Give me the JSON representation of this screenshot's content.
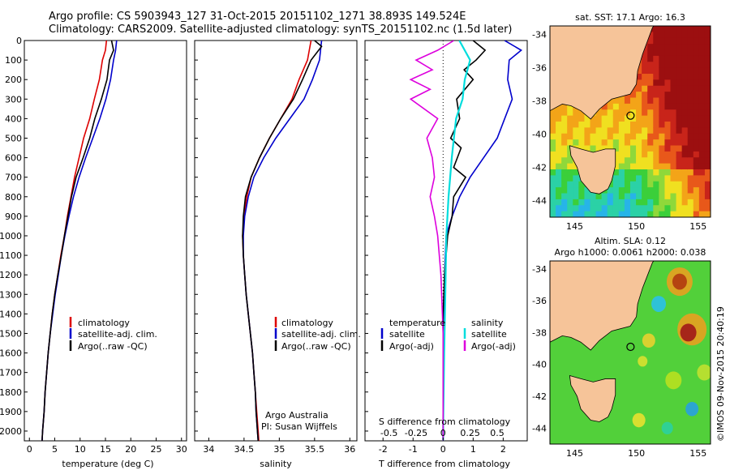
{
  "header": {
    "title_line1": "Argo profile: CS 5903943_127 31-Oct-2015 20151102_1271 38.893S 149.524E",
    "title_line2": "Climatology: CARS2009. Satellite-adjusted climatology: synTS_20151102.nc (1.5d later)"
  },
  "colors": {
    "climatology": "#dd0000",
    "satellite": "#0000cc",
    "argo": "#000000",
    "satellite_s": "#00dddd",
    "argo_s": "#dd00dd"
  },
  "chart_data": [
    {
      "type": "line",
      "name": "temperature-profile",
      "xlabel": "temperature (deg C)",
      "xlim": [
        -1,
        31
      ],
      "ylim": [
        2050,
        0
      ],
      "xticks": [
        "0",
        "5",
        "10",
        "15",
        "20",
        "25",
        "30"
      ],
      "yticks": [
        "0",
        "100",
        "200",
        "300",
        "400",
        "500",
        "600",
        "700",
        "800",
        "900",
        "1000",
        "1100",
        "1200",
        "1300",
        "1400",
        "1500",
        "1600",
        "1700",
        "1800",
        "1900",
        "2000"
      ],
      "legend": [
        "climatology",
        "satellite-adj. clim.",
        "Argo(..raw -QC)"
      ],
      "series": [
        {
          "name": "climatology",
          "color": "#dd0000",
          "points": [
            [
              15.2,
              0
            ],
            [
              15,
              50
            ],
            [
              14.4,
              100
            ],
            [
              13.8,
              200
            ],
            [
              12.8,
              300
            ],
            [
              11.9,
              400
            ],
            [
              10.7,
              500
            ],
            [
              9.8,
              600
            ],
            [
              8.9,
              700
            ],
            [
              8.2,
              800
            ],
            [
              7.5,
              900
            ],
            [
              6.9,
              1000
            ],
            [
              6.2,
              1100
            ],
            [
              5.6,
              1200
            ],
            [
              5,
              1300
            ],
            [
              4.5,
              1400
            ],
            [
              4.1,
              1500
            ],
            [
              3.7,
              1600
            ],
            [
              3.4,
              1700
            ],
            [
              3.1,
              1800
            ],
            [
              2.9,
              1900
            ],
            [
              2.6,
              2000
            ],
            [
              2.5,
              2050
            ]
          ]
        },
        {
          "name": "satellite-adj. clim.",
          "color": "#0000cc",
          "points": [
            [
              17.2,
              0
            ],
            [
              17,
              50
            ],
            [
              16.6,
              100
            ],
            [
              16,
              200
            ],
            [
              15.1,
              300
            ],
            [
              13.9,
              400
            ],
            [
              12.5,
              500
            ],
            [
              11.1,
              600
            ],
            [
              9.8,
              700
            ],
            [
              8.7,
              800
            ],
            [
              7.8,
              900
            ],
            [
              7,
              1000
            ],
            [
              6.3,
              1100
            ],
            [
              5.7,
              1200
            ],
            [
              5.1,
              1300
            ],
            [
              4.6,
              1400
            ],
            [
              4.1,
              1500
            ],
            [
              3.7,
              1600
            ],
            [
              3.4,
              1700
            ],
            [
              3.1,
              1800
            ],
            [
              2.9,
              1900
            ],
            [
              2.6,
              2000
            ],
            [
              2.5,
              2050
            ]
          ]
        },
        {
          "name": "Argo(..raw -QC)",
          "color": "#000000",
          "points": [
            [
              16.2,
              0
            ],
            [
              16.6,
              50
            ],
            [
              15.8,
              100
            ],
            [
              15.3,
              200
            ],
            [
              14.2,
              300
            ],
            [
              12.9,
              400
            ],
            [
              11.9,
              500
            ],
            [
              10.6,
              600
            ],
            [
              9.2,
              700
            ],
            [
              8.3,
              800
            ],
            [
              7.6,
              900
            ],
            [
              6.9,
              1000
            ],
            [
              6.3,
              1100
            ],
            [
              5.6,
              1200
            ],
            [
              5,
              1300
            ],
            [
              4.5,
              1400
            ],
            [
              4.1,
              1500
            ],
            [
              3.7,
              1600
            ],
            [
              3.4,
              1700
            ],
            [
              3.1,
              1800
            ],
            [
              2.9,
              1900
            ],
            [
              2.6,
              2000
            ],
            [
              2.5,
              2050
            ]
          ]
        }
      ]
    },
    {
      "type": "line",
      "name": "salinity-profile",
      "xlabel": "salinity",
      "xlim": [
        33.8,
        36.1
      ],
      "ylim": [
        2050,
        0
      ],
      "xticks": [
        "34",
        "34.5",
        "35",
        "35.5",
        "36"
      ],
      "legend": [
        "climatology",
        "satellite-adj. clim.",
        "Argo(..raw -QC)"
      ],
      "annotation": [
        "Argo Australia",
        "PI: Susan Wijffels"
      ],
      "series": [
        {
          "name": "climatology",
          "color": "#dd0000",
          "points": [
            [
              35.45,
              0
            ],
            [
              35.4,
              100
            ],
            [
              35.28,
              200
            ],
            [
              35.18,
              300
            ],
            [
              35.02,
              400
            ],
            [
              34.86,
              500
            ],
            [
              34.72,
              600
            ],
            [
              34.6,
              700
            ],
            [
              34.54,
              800
            ],
            [
              34.5,
              900
            ],
            [
              34.48,
              1000
            ],
            [
              34.49,
              1100
            ],
            [
              34.51,
              1200
            ],
            [
              34.53,
              1300
            ],
            [
              34.56,
              1400
            ],
            [
              34.59,
              1500
            ],
            [
              34.62,
              1600
            ],
            [
              34.64,
              1700
            ],
            [
              34.66,
              1800
            ],
            [
              34.68,
              1900
            ],
            [
              34.7,
              2000
            ],
            [
              34.71,
              2050
            ]
          ]
        },
        {
          "name": "satellite-adj. clim.",
          "color": "#0000cc",
          "points": [
            [
              35.6,
              0
            ],
            [
              35.57,
              100
            ],
            [
              35.47,
              200
            ],
            [
              35.35,
              300
            ],
            [
              35.15,
              400
            ],
            [
              34.95,
              500
            ],
            [
              34.78,
              600
            ],
            [
              34.64,
              700
            ],
            [
              34.56,
              800
            ],
            [
              34.51,
              900
            ],
            [
              34.49,
              1000
            ],
            [
              34.49,
              1100
            ],
            [
              34.51,
              1200
            ],
            [
              34.53,
              1300
            ],
            [
              34.56,
              1400
            ],
            [
              34.59,
              1500
            ],
            [
              34.62,
              1600
            ],
            [
              34.64,
              1700
            ],
            [
              34.66,
              1800
            ],
            [
              34.67,
              1900
            ],
            [
              34.69,
              2000
            ],
            [
              34.7,
              2050
            ]
          ]
        },
        {
          "name": "Argo(..raw -QC)",
          "color": "#000000",
          "points": [
            [
              35.5,
              0
            ],
            [
              35.6,
              30
            ],
            [
              35.45,
              100
            ],
            [
              35.33,
              200
            ],
            [
              35.2,
              300
            ],
            [
              35.02,
              400
            ],
            [
              34.86,
              500
            ],
            [
              34.72,
              600
            ],
            [
              34.6,
              700
            ],
            [
              34.52,
              800
            ],
            [
              34.49,
              900
            ],
            [
              34.48,
              1000
            ],
            [
              34.49,
              1100
            ],
            [
              34.51,
              1200
            ],
            [
              34.53,
              1300
            ],
            [
              34.56,
              1400
            ],
            [
              34.59,
              1500
            ],
            [
              34.62,
              1600
            ],
            [
              34.64,
              1700
            ],
            [
              34.66,
              1800
            ],
            [
              34.67,
              1900
            ],
            [
              34.69,
              2000
            ],
            [
              34.7,
              2050
            ]
          ]
        }
      ]
    },
    {
      "type": "line",
      "name": "difference-profile",
      "xlabel": "T difference from climatology",
      "xlabel_top": "S difference from climatology",
      "xlim": [
        -2.6,
        2.8
      ],
      "ylim": [
        2050,
        0
      ],
      "xticks": [
        "-2",
        "-1",
        "0",
        "1",
        "2"
      ],
      "xticks_s": [
        "-0.5",
        "-0.25",
        "0",
        "0.25",
        "0.5"
      ],
      "legend_t": [
        "temperature",
        "satellite",
        "Argo(-adj)"
      ],
      "legend_s": [
        "salinity",
        "satellite",
        "Argo(-adj)"
      ],
      "series": [
        {
          "name": "T satellite",
          "color": "#0000cc",
          "points": [
            [
              2.05,
              0
            ],
            [
              2.6,
              50
            ],
            [
              2.2,
              100
            ],
            [
              2.15,
              200
            ],
            [
              2.3,
              300
            ],
            [
              2.05,
              400
            ],
            [
              1.8,
              500
            ],
            [
              1.35,
              600
            ],
            [
              0.9,
              700
            ],
            [
              0.55,
              800
            ],
            [
              0.3,
              900
            ],
            [
              0.1,
              1000
            ],
            [
              0.05,
              1200
            ],
            [
              0.02,
              1400
            ],
            [
              0,
              1600
            ],
            [
              0,
              2000
            ],
            [
              0,
              2050
            ]
          ]
        },
        {
          "name": "T Argo(-adj)",
          "color": "#000000",
          "points": [
            [
              1.0,
              0
            ],
            [
              1.4,
              50
            ],
            [
              1.1,
              100
            ],
            [
              0.7,
              150
            ],
            [
              1.0,
              200
            ],
            [
              0.45,
              300
            ],
            [
              0.55,
              400
            ],
            [
              0.25,
              500
            ],
            [
              0.6,
              550
            ],
            [
              0.35,
              650
            ],
            [
              0.75,
              700
            ],
            [
              0.35,
              800
            ],
            [
              0.3,
              900
            ],
            [
              0.15,
              1000
            ],
            [
              0.05,
              1200
            ],
            [
              0,
              1400
            ],
            [
              0,
              2000
            ],
            [
              0,
              2050
            ]
          ]
        },
        {
          "name": "S satellite",
          "color": "#00dddd",
          "points": [
            [
              0.15,
              0
            ],
            [
              0.25,
              100
            ],
            [
              0.2,
              200
            ],
            [
              0.18,
              300
            ],
            [
              0.12,
              400
            ],
            [
              0.1,
              500
            ],
            [
              0.08,
              600
            ],
            [
              0.05,
              800
            ],
            [
              0.03,
              1000
            ],
            [
              0.02,
              1300
            ],
            [
              0.01,
              1600
            ],
            [
              0,
              2000
            ],
            [
              0,
              2050
            ]
          ]
        },
        {
          "name": "S Argo(-adj)",
          "color": "#dd00dd",
          "points": [
            [
              0.1,
              0
            ],
            [
              -0.05,
              50
            ],
            [
              -0.25,
              100
            ],
            [
              -0.1,
              150
            ],
            [
              -0.3,
              200
            ],
            [
              -0.12,
              250
            ],
            [
              -0.3,
              300
            ],
            [
              -0.05,
              400
            ],
            [
              -0.15,
              500
            ],
            [
              -0.1,
              600
            ],
            [
              -0.08,
              700
            ],
            [
              -0.12,
              800
            ],
            [
              -0.08,
              900
            ],
            [
              -0.05,
              1000
            ],
            [
              -0.02,
              1200
            ],
            [
              0,
              1500
            ],
            [
              0,
              2000
            ],
            [
              0,
              2050
            ]
          ]
        }
      ]
    },
    {
      "type": "heatmap",
      "name": "sst-map",
      "title": "sat. SST: 17.1  Argo: 16.3",
      "xlim": [
        143,
        156
      ],
      "ylim": [
        -45,
        -33.5
      ],
      "xticks": [
        "145",
        "150",
        "155"
      ],
      "yticks": [
        "-34",
        "-36",
        "-38",
        "-40",
        "-42",
        "-44"
      ],
      "marker": [
        149.524,
        -38.893
      ]
    },
    {
      "type": "heatmap",
      "name": "sla-map",
      "title_line1": "Altim. SLA: 0.12",
      "title_line2": "Argo h1000: 0.0061  h2000: 0.038",
      "xlim": [
        143,
        156
      ],
      "ylim": [
        -45,
        -33.5
      ],
      "xticks": [
        "145",
        "150",
        "155"
      ],
      "yticks": [
        "-34",
        "-36",
        "-38",
        "-40",
        "-42",
        "-44"
      ],
      "marker": [
        149.524,
        -38.893
      ]
    }
  ],
  "credit": "©IMOS 09-Nov-2015 20:40:19"
}
